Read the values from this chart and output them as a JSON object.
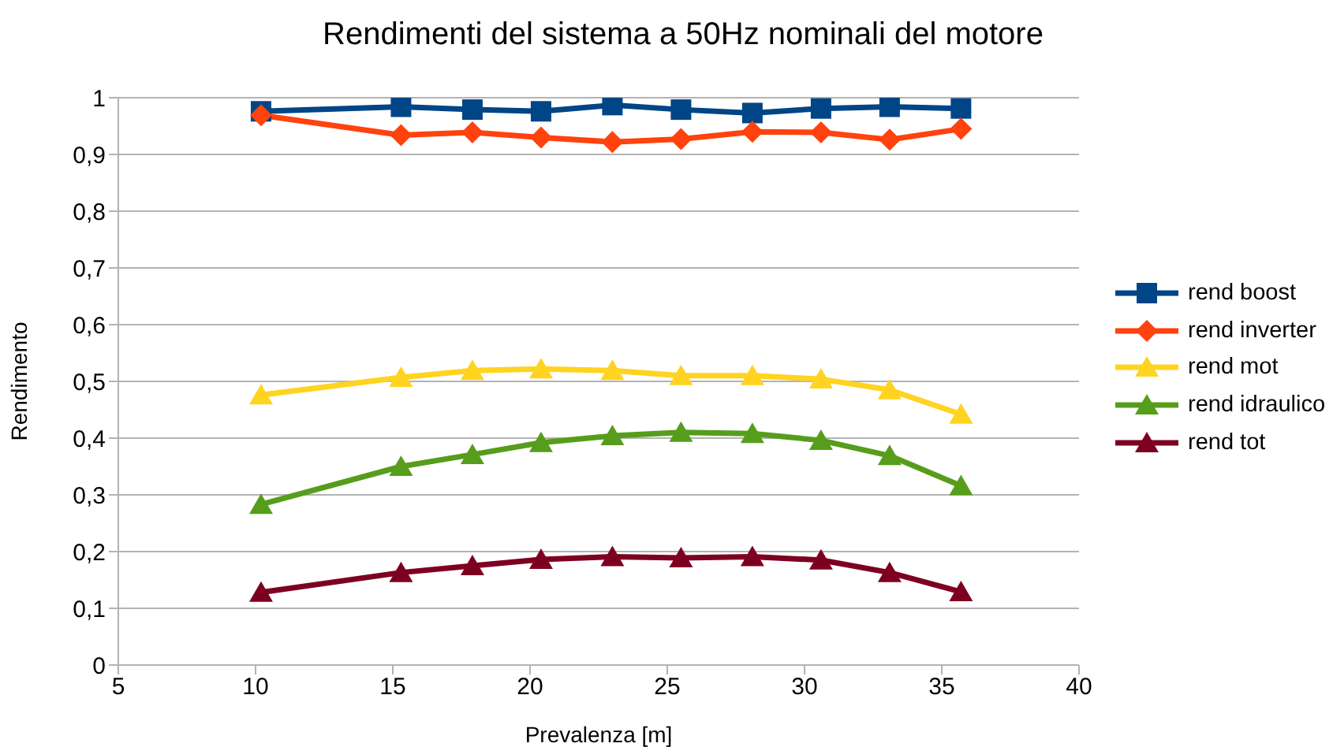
{
  "chart_data": {
    "type": "line",
    "title": "Rendimenti del sistema a 50Hz nominali del motore",
    "xlabel": "Prevalenza [m]",
    "ylabel": "Rendimento",
    "x": [
      10.2,
      15.3,
      17.9,
      20.4,
      23.0,
      25.5,
      28.1,
      30.6,
      33.1,
      35.7
    ],
    "series": [
      {
        "name": "rend boost",
        "color": "#004586",
        "marker": "square",
        "values": [
          0.976,
          0.984,
          0.979,
          0.976,
          0.987,
          0.979,
          0.973,
          0.981,
          0.984,
          0.981
        ]
      },
      {
        "name": "rend inverter",
        "color": "#ff420e",
        "marker": "diamond",
        "values": [
          0.969,
          0.934,
          0.939,
          0.93,
          0.922,
          0.927,
          0.94,
          0.939,
          0.926,
          0.945
        ]
      },
      {
        "name": "rend mot",
        "color": "#ffd320",
        "marker": "triangle",
        "values": [
          0.476,
          0.507,
          0.519,
          0.522,
          0.519,
          0.51,
          0.51,
          0.504,
          0.485,
          0.442
        ]
      },
      {
        "name": "rend idraulico",
        "color": "#579d1c",
        "marker": "triangle",
        "values": [
          0.283,
          0.35,
          0.371,
          0.392,
          0.404,
          0.41,
          0.408,
          0.396,
          0.369,
          0.316
        ]
      },
      {
        "name": "rend tot",
        "color": "#7e0021",
        "marker": "triangle",
        "values": [
          0.128,
          0.163,
          0.175,
          0.186,
          0.191,
          0.189,
          0.191,
          0.185,
          0.163,
          0.129
        ]
      }
    ],
    "xlim": [
      5,
      40
    ],
    "xticks": [
      5,
      10,
      15,
      20,
      25,
      30,
      35,
      40
    ],
    "ylim": [
      0,
      1
    ],
    "yticks": [
      0,
      {
        "value": 0.1,
        "label": "0,1"
      },
      {
        "value": 0.2,
        "label": "0,2"
      },
      {
        "value": 0.3,
        "label": "0,3"
      },
      {
        "value": 0.4,
        "label": "0,4"
      },
      {
        "value": 0.5,
        "label": "0,5"
      },
      {
        "value": 0.6,
        "label": "0,6"
      },
      {
        "value": 0.7,
        "label": "0,7"
      },
      {
        "value": 0.8,
        "label": "0,8"
      },
      {
        "value": 0.9,
        "label": "0,9"
      },
      1
    ],
    "grid": "y",
    "legend": "right",
    "line_style": "solid"
  }
}
